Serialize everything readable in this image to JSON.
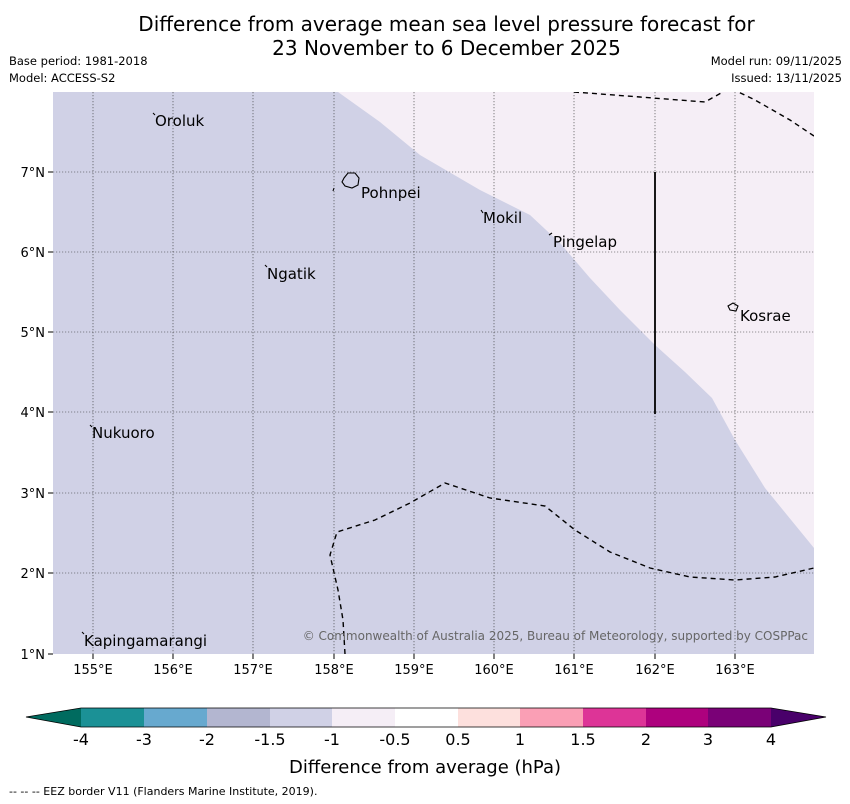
{
  "title": {
    "line1": "Difference from average mean sea level pressure forecast for",
    "line2": "23 November to 6 December 2025"
  },
  "meta": {
    "base_period": "Base period: 1981-2018",
    "model": "Model: ACCESS-S2",
    "model_run": "Model run: 09/11/2025",
    "issued": "Issued: 13/11/2025"
  },
  "map": {
    "lat_labels": [
      "7°N",
      "6°N",
      "5°N",
      "4°N",
      "3°N",
      "2°N",
      "1°N"
    ],
    "lon_labels": [
      "155°E",
      "156°E",
      "157°E",
      "158°E",
      "159°E",
      "160°E",
      "161°E",
      "162°E",
      "163°E"
    ],
    "places": [
      {
        "name": "Oroluk"
      },
      {
        "name": "Pohnpei"
      },
      {
        "name": "Mokil"
      },
      {
        "name": "Pingelap"
      },
      {
        "name": "Ngatik"
      },
      {
        "name": "Kosrae"
      },
      {
        "name": "Nukuoro"
      },
      {
        "name": "Kapingamarangi"
      }
    ],
    "shading": [
      {
        "range": "-1.5 to -1 hPa",
        "color": "#d0d1e6"
      },
      {
        "range": "-1 to -0.5 hPa",
        "color": "#f5eef6"
      }
    ],
    "copyright": "© Commonwealth of Australia 2025, Bureau of Meteorology, supported by COSPPac"
  },
  "legend": {
    "ticks": [
      "-4",
      "-3",
      "-2",
      "-1.5",
      "-1",
      "-0.5",
      "0.5",
      "1",
      "1.5",
      "2",
      "3",
      "4"
    ],
    "colors": [
      "#006b5f",
      "#1b9196",
      "#67a9cf",
      "#b3b6d0",
      "#d0d1e6",
      "#f5eef6",
      "#ffffff",
      "#fde0dd",
      "#fa9fb5",
      "#dd3497",
      "#ae017e",
      "#7a0177",
      "#49006a"
    ],
    "label": "Difference from average (hPa)"
  },
  "footer": "--  --  -- EEZ border V11 (Flanders Marine Institute, 2019)."
}
